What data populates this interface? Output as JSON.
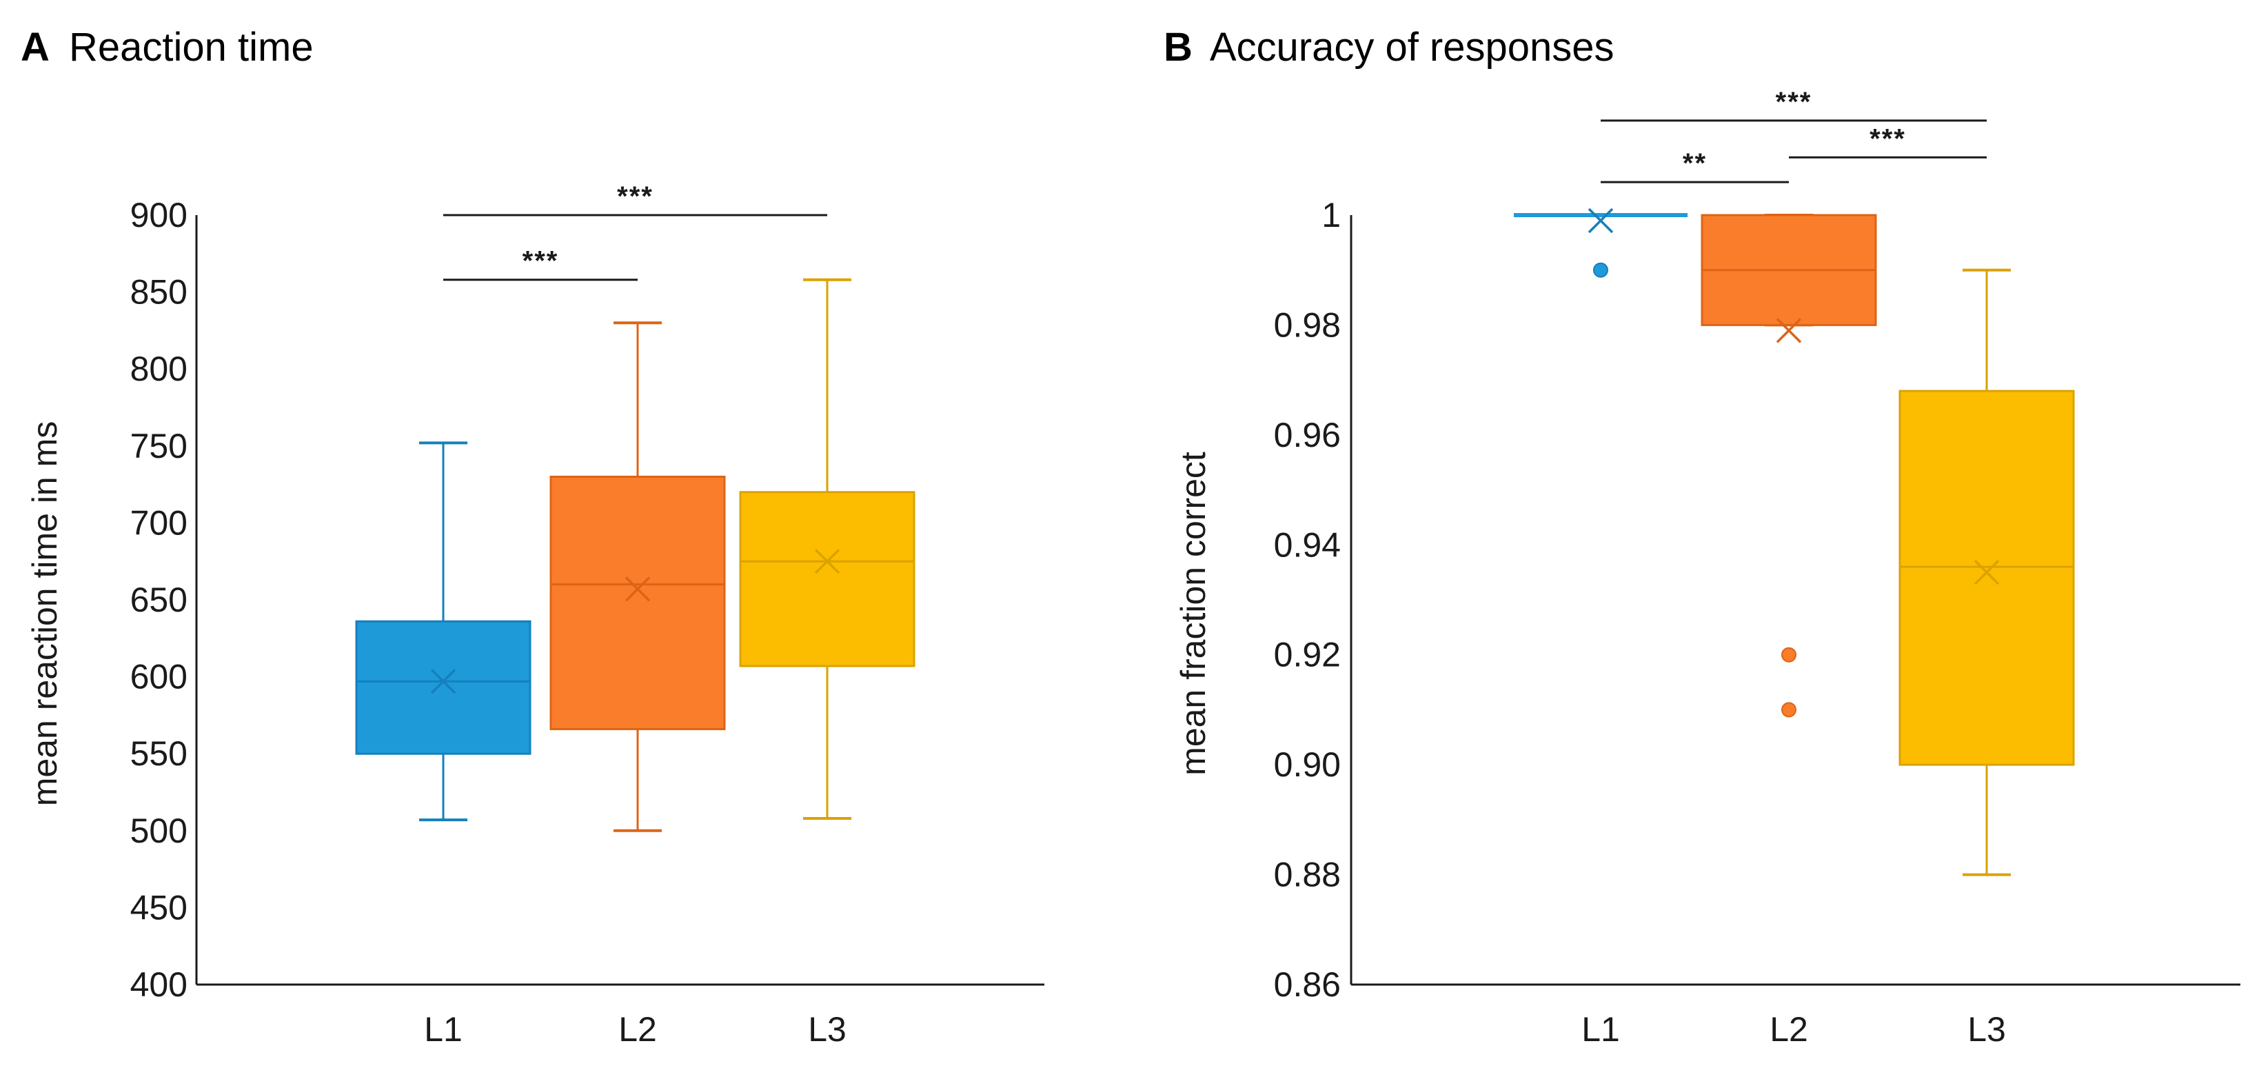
{
  "chart_data": [
    {
      "type": "box",
      "panel": "A",
      "title": "Reaction time",
      "ylabel": "mean reaction time in ms",
      "xlabel": "",
      "ylim": [
        400,
        900
      ],
      "yticks": [
        400,
        450,
        500,
        550,
        600,
        650,
        700,
        750,
        800,
        850,
        900
      ],
      "ytick_labels": [
        "400",
        "450",
        "500",
        "550",
        "600",
        "650",
        "700",
        "750",
        "800",
        "850",
        "900"
      ],
      "categories": [
        "L1",
        "L2",
        "L3"
      ],
      "colors": [
        "#1f9ad9",
        "#f97d2b",
        "#fcbd00"
      ],
      "edge_colors": [
        "#1580bd",
        "#dd6416",
        "#dba200"
      ],
      "boxes": [
        {
          "label": "L1",
          "whisker_low": 507,
          "q1": 550,
          "median": 597,
          "q3": 636,
          "whisker_high": 752,
          "mean": 597,
          "outliers": []
        },
        {
          "label": "L2",
          "whisker_low": 500,
          "q1": 566,
          "median": 660,
          "q3": 730,
          "whisker_high": 830,
          "mean": 657,
          "outliers": []
        },
        {
          "label": "L3",
          "whisker_low": 508,
          "q1": 607,
          "median": 675,
          "q3": 720,
          "whisker_high": 858,
          "mean": 675,
          "outliers": []
        }
      ],
      "significance": [
        {
          "from": "L1",
          "to": "L2",
          "label": "***",
          "y": 858
        },
        {
          "from": "L1",
          "to": "L3",
          "label": "***",
          "y": 900
        }
      ]
    },
    {
      "type": "box",
      "panel": "B",
      "title": "Accuracy of responses",
      "ylabel": "mean fraction correct",
      "xlabel": "",
      "ylim": [
        0.86,
        1.0
      ],
      "yticks": [
        0.86,
        0.88,
        0.9,
        0.92,
        0.94,
        0.96,
        0.98,
        1.0
      ],
      "ytick_labels": [
        "0.86",
        "0.88",
        "0.90",
        "0.92",
        "0.94",
        "0.96",
        "0.98",
        "1"
      ],
      "categories": [
        "L1",
        "L2",
        "L3"
      ],
      "colors": [
        "#1f9ad9",
        "#f97d2b",
        "#fcbd00"
      ],
      "edge_colors": [
        "#1580bd",
        "#dd6416",
        "#dba200"
      ],
      "boxes": [
        {
          "label": "L1",
          "whisker_low": 1.0,
          "q1": 1.0,
          "median": 1.0,
          "q3": 1.0,
          "whisker_high": 1.0,
          "mean": 0.999,
          "outliers": [
            0.99
          ]
        },
        {
          "label": "L2",
          "whisker_low": 0.98,
          "q1": 0.98,
          "median": 0.99,
          "q3": 1.0,
          "whisker_high": 1.0,
          "mean": 0.979,
          "outliers": [
            0.92,
            0.91
          ]
        },
        {
          "label": "L3",
          "whisker_low": 0.88,
          "q1": 0.9,
          "median": 0.936,
          "q3": 0.968,
          "whisker_high": 0.99,
          "mean": 0.935,
          "outliers": []
        }
      ],
      "significance": [
        {
          "from": "L1",
          "to": "L2",
          "label": "**",
          "y": 1.006
        },
        {
          "from": "L2",
          "to": "L3",
          "label": "***",
          "y": 1.0105
        },
        {
          "from": "L1",
          "to": "L3",
          "label": "***",
          "y": 1.0172
        }
      ]
    }
  ]
}
